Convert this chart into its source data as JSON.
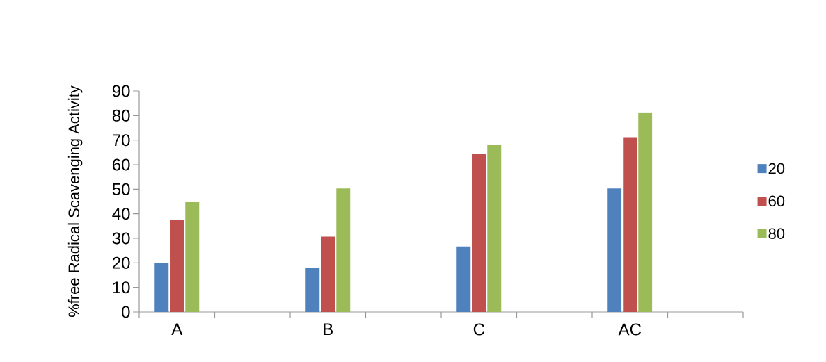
{
  "chart_data": {
    "type": "bar",
    "ylabel": "%free Radical Scavenging Activity",
    "categories": [
      "A",
      null,
      "B",
      null,
      "C",
      null,
      "AC",
      null
    ],
    "series": [
      {
        "name": "20",
        "color": "#4f81bd",
        "values": [
          20.0,
          null,
          17.8,
          null,
          26.7,
          null,
          50.3,
          null
        ]
      },
      {
        "name": "60",
        "color": "#c0504d",
        "values": [
          37.4,
          null,
          30.7,
          null,
          64.4,
          null,
          71.2,
          null
        ]
      },
      {
        "name": "80",
        "color": "#9bbb59",
        "values": [
          44.7,
          null,
          50.3,
          null,
          67.9,
          null,
          81.3,
          null
        ]
      }
    ],
    "ylim": [
      0,
      90
    ],
    "yticks": [
      0,
      10,
      20,
      30,
      40,
      50,
      60,
      70,
      80,
      90
    ],
    "grid": false,
    "legend": "right"
  }
}
